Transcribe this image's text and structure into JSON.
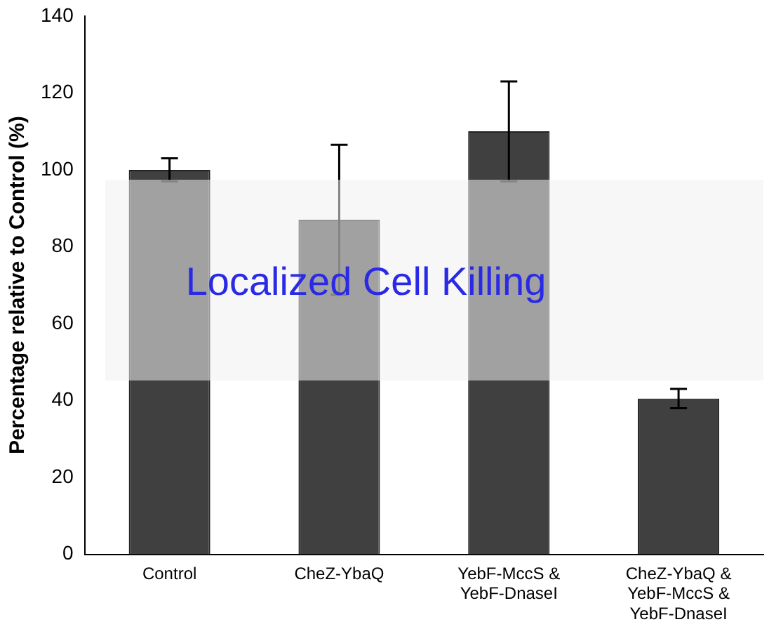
{
  "chart_data": {
    "type": "bar",
    "ylabel": "Percentage relative to Control (%)",
    "categories": [
      "Control",
      "CheZ-YbaQ",
      "YebF-MccS &\nYebF-DnaseI",
      "CheZ-YbaQ &\nYebF-MccS &\nYebF-DnaseI"
    ],
    "values": [
      100,
      87,
      110,
      40.5
    ],
    "errors": [
      3,
      19.5,
      13,
      2.5
    ],
    "color": "#404040",
    "ylim": [
      0,
      140
    ],
    "yticks": [
      0,
      20,
      40,
      60,
      80,
      100,
      120,
      140
    ],
    "grid": false,
    "legend": false,
    "annotations": [
      "Localized Cell Killing"
    ]
  }
}
